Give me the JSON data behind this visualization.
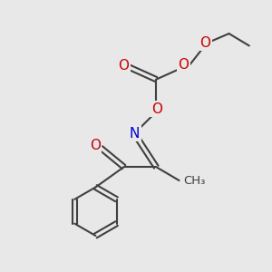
{
  "background_color": "#e8e8e8",
  "atom_colors": {
    "C": "#404040",
    "O": "#cc0000",
    "N": "#0000cc"
  },
  "bond_color": "#404040",
  "bond_width": 1.5,
  "figsize": [
    3.0,
    3.0
  ],
  "dpi": 100
}
